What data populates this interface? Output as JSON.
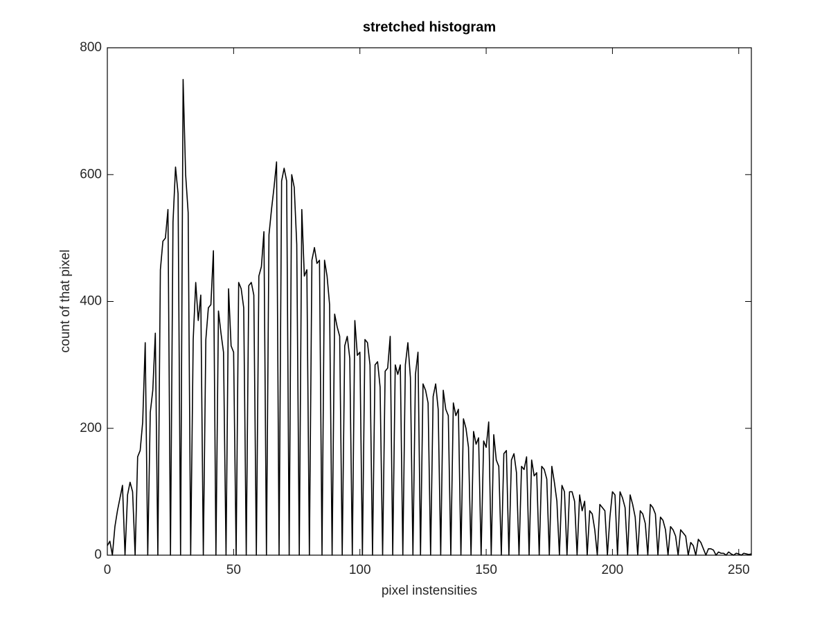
{
  "chart_data": {
    "type": "line",
    "title": "stretched histogram",
    "x_label": "pixel instensities",
    "y_label": "count of that pixel",
    "color": "#000000",
    "x": [
      0,
      1,
      2,
      3,
      4,
      5,
      6,
      7,
      8,
      9,
      10,
      11,
      12,
      13,
      14,
      15,
      16,
      17,
      18,
      19,
      20,
      21,
      22,
      23,
      24,
      25,
      26,
      27,
      28,
      29,
      30,
      31,
      32,
      33,
      34,
      35,
      36,
      37,
      38,
      39,
      40,
      41,
      42,
      43,
      44,
      45,
      46,
      47,
      48,
      49,
      50,
      51,
      52,
      53,
      54,
      55,
      56,
      57,
      58,
      59,
      60,
      61,
      62,
      63,
      64,
      65,
      66,
      67,
      68,
      69,
      70,
      71,
      72,
      73,
      74,
      75,
      76,
      77,
      78,
      79,
      80,
      81,
      82,
      83,
      84,
      85,
      86,
      87,
      88,
      89,
      90,
      91,
      92,
      93,
      94,
      95,
      96,
      97,
      98,
      99,
      100,
      101,
      102,
      103,
      104,
      105,
      106,
      107,
      108,
      109,
      110,
      111,
      112,
      113,
      114,
      115,
      116,
      117,
      118,
      119,
      120,
      121,
      122,
      123,
      124,
      125,
      126,
      127,
      128,
      129,
      130,
      131,
      132,
      133,
      134,
      135,
      136,
      137,
      138,
      139,
      140,
      141,
      142,
      143,
      144,
      145,
      146,
      147,
      148,
      149,
      150,
      151,
      152,
      153,
      154,
      155,
      156,
      157,
      158,
      159,
      160,
      161,
      162,
      163,
      164,
      165,
      166,
      167,
      168,
      169,
      170,
      171,
      172,
      173,
      174,
      175,
      176,
      177,
      178,
      179,
      180,
      181,
      182,
      183,
      184,
      185,
      186,
      187,
      188,
      189,
      190,
      191,
      192,
      193,
      194,
      195,
      196,
      197,
      198,
      199,
      200,
      201,
      202,
      203,
      204,
      205,
      206,
      207,
      208,
      209,
      210,
      211,
      212,
      213,
      214,
      215,
      216,
      217,
      218,
      219,
      220,
      221,
      222,
      223,
      224,
      225,
      226,
      227,
      228,
      229,
      230,
      231,
      232,
      233,
      234,
      235,
      236,
      237,
      238,
      239,
      240,
      241,
      242,
      243,
      244,
      245,
      246,
      247,
      248,
      249,
      250,
      251,
      252,
      253,
      254,
      255
    ],
    "values": [
      15,
      22,
      0,
      45,
      70,
      90,
      110,
      0,
      95,
      115,
      100,
      0,
      155,
      165,
      210,
      335,
      0,
      225,
      260,
      350,
      0,
      450,
      495,
      500,
      545,
      0,
      525,
      612,
      570,
      0,
      750,
      600,
      540,
      0,
      340,
      430,
      370,
      410,
      0,
      340,
      390,
      395,
      480,
      0,
      385,
      350,
      320,
      0,
      420,
      330,
      320,
      0,
      430,
      420,
      390,
      0,
      425,
      430,
      410,
      0,
      440,
      455,
      510,
      0,
      505,
      545,
      580,
      620,
      0,
      590,
      610,
      590,
      0,
      600,
      580,
      490,
      0,
      545,
      440,
      450,
      0,
      465,
      485,
      460,
      465,
      0,
      465,
      440,
      395,
      0,
      380,
      360,
      345,
      0,
      330,
      345,
      310,
      0,
      370,
      315,
      320,
      0,
      340,
      335,
      300,
      0,
      300,
      305,
      265,
      0,
      290,
      295,
      345,
      0,
      300,
      285,
      300,
      0,
      300,
      335,
      280,
      0,
      285,
      320,
      0,
      270,
      260,
      240,
      0,
      250,
      270,
      230,
      0,
      260,
      230,
      220,
      0,
      240,
      220,
      230,
      0,
      215,
      200,
      170,
      0,
      195,
      175,
      185,
      0,
      180,
      170,
      210,
      0,
      190,
      150,
      140,
      0,
      160,
      165,
      0,
      150,
      160,
      130,
      0,
      140,
      135,
      155,
      0,
      150,
      125,
      130,
      0,
      140,
      135,
      120,
      0,
      140,
      115,
      85,
      0,
      110,
      100,
      0,
      100,
      100,
      85,
      0,
      95,
      70,
      85,
      0,
      70,
      65,
      40,
      0,
      80,
      75,
      70,
      0,
      60,
      100,
      95,
      0,
      100,
      90,
      75,
      0,
      95,
      80,
      60,
      0,
      70,
      65,
      50,
      0,
      80,
      75,
      65,
      0,
      60,
      55,
      40,
      0,
      45,
      40,
      30,
      0,
      40,
      35,
      30,
      0,
      20,
      15,
      0,
      25,
      20,
      10,
      0,
      10,
      10,
      8,
      0,
      5,
      3,
      3,
      0,
      5,
      2,
      0,
      3,
      2,
      0,
      3,
      2,
      1,
      2
    ],
    "xlim": [
      0,
      255
    ],
    "ylim": [
      0,
      800
    ],
    "xticks": [
      0,
      50,
      100,
      150,
      200,
      250
    ],
    "yticks": [
      0,
      200,
      400,
      600,
      800
    ]
  }
}
